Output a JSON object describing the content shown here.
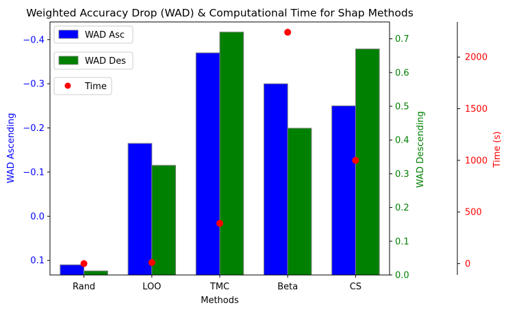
{
  "chart_data": {
    "type": "bar",
    "title": "Weighted Accuracy Drop (WAD) & Computational Time for Shap Methods",
    "xlabel": "Methods",
    "categories": [
      "Rand",
      "LOO",
      "TMC",
      "Beta",
      "CS"
    ],
    "axes": {
      "left": {
        "label": "WAD Ascending",
        "color": "#0000ff",
        "inverted": true,
        "ylim": [
          0.133,
          -0.44
        ],
        "ticks": [
          0.1,
          0.0,
          -0.1,
          -0.2,
          -0.3,
          -0.4
        ],
        "tick_labels": [
          "0.1",
          "0.0",
          "−0.1",
          "−0.2",
          "−0.3",
          "−0.4"
        ]
      },
      "right": {
        "label": "WAD Descending",
        "color": "#008000",
        "ylim": [
          0.0,
          0.75
        ],
        "ticks": [
          0.0,
          0.1,
          0.2,
          0.3,
          0.4,
          0.5,
          0.6,
          0.7
        ],
        "tick_labels": [
          "0.0",
          "0.1",
          "0.2",
          "0.3",
          "0.4",
          "0.5",
          "0.6",
          "0.7"
        ]
      },
      "time": {
        "label": "Time (s)",
        "color": "#ff0000",
        "ylim": [
          -110,
          2340
        ],
        "ticks": [
          0,
          500,
          1000,
          1500,
          2000
        ],
        "tick_labels": [
          "0",
          "500",
          "1000",
          "1500",
          "2000"
        ]
      }
    },
    "series": [
      {
        "name": "WAD Asc",
        "axis": "left",
        "color": "#0000ff",
        "kind": "bar",
        "values": [
          0.11,
          -0.165,
          -0.37,
          -0.3,
          -0.25
        ]
      },
      {
        "name": "WAD Des",
        "axis": "right",
        "color": "#008000",
        "kind": "bar",
        "values": [
          0.012,
          0.325,
          0.72,
          0.435,
          0.67
        ]
      },
      {
        "name": "Time",
        "axis": "time",
        "color": "#ff0000",
        "kind": "scatter",
        "values": [
          0,
          10,
          390,
          2240,
          1000
        ]
      }
    ],
    "legend": {
      "placement": "top-left",
      "entries": [
        "WAD Asc",
        "WAD Des",
        "Time"
      ]
    },
    "grid": false
  }
}
